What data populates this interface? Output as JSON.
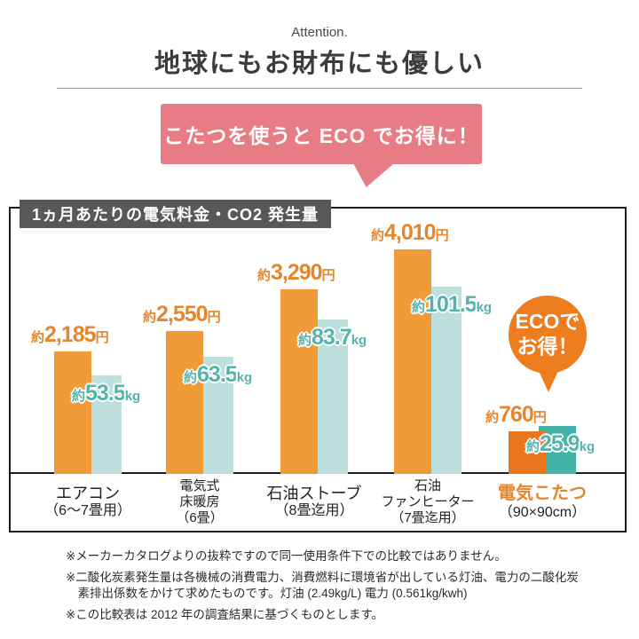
{
  "header": {
    "eyebrow": "Attention.",
    "title": "地球にもお財布にも優しい"
  },
  "bubble": {
    "text": "こたつを使うと ECO でお得に！",
    "bg_color": "#e87c85"
  },
  "chart": {
    "title": "1ヵ月あたりの電気料金・CO2 発生量",
    "titlebar_bg": "#595757"
  },
  "chart_data": {
    "type": "bar",
    "title": "1ヵ月あたりの電気料金・CO2 発生量",
    "categories": [
      "エアコン（6～7畳用）",
      "電気式床暖房（6畳）",
      "石油ストーブ（8畳迄用）",
      "石油ファンヒーター（7畳迄用）",
      "電気こたつ（90×90cm）"
    ],
    "category_lines": [
      {
        "lines": [
          "エアコン",
          "（6～7畳用）"
        ],
        "styles": [
          "main",
          "sub"
        ],
        "highlight": false
      },
      {
        "lines": [
          "電気式",
          "床暖房",
          "（6畳）"
        ],
        "styles": [
          "small",
          "small",
          "small"
        ],
        "highlight": false
      },
      {
        "lines": [
          "石油ストーブ",
          "（8畳迄用）"
        ],
        "styles": [
          "main",
          "sub"
        ],
        "highlight": false
      },
      {
        "lines": [
          "石油",
          "ファンヒーター",
          "（7畳迄用）"
        ],
        "styles": [
          "small",
          "small",
          "small"
        ],
        "highlight": false
      },
      {
        "lines": [
          "電気こたつ",
          "（90×90cm）"
        ],
        "styles": [
          "main",
          "sub"
        ],
        "highlight": true
      }
    ],
    "series": [
      {
        "name": "電気料金",
        "unit": "円",
        "values": [
          2185,
          2550,
          3290,
          4010,
          760
        ],
        "labels": [
          {
            "approx": "約",
            "num": "2,185",
            "unit": "円"
          },
          {
            "approx": "約",
            "num": "2,550",
            "unit": "円"
          },
          {
            "approx": "約",
            "num": "3,290",
            "unit": "円"
          },
          {
            "approx": "約",
            "num": "4,010",
            "unit": "円"
          },
          {
            "approx": "約",
            "num": "760",
            "unit": "円"
          }
        ],
        "color": "#f19a38",
        "highlight_color": "#e9751d"
      },
      {
        "name": "CO2発生量",
        "unit": "kg",
        "values": [
          53.5,
          63.5,
          83.7,
          101.5,
          25.9
        ],
        "labels": [
          {
            "approx": "約",
            "num": "53.5",
            "unit": "kg"
          },
          {
            "approx": "約",
            "num": "63.5",
            "unit": "kg"
          },
          {
            "approx": "約",
            "num": "83.7",
            "unit": "kg"
          },
          {
            "approx": "約",
            "num": "101.5",
            "unit": "kg"
          },
          {
            "approx": "約",
            "num": "25.9",
            "unit": "kg"
          }
        ],
        "color": "#bedfdb",
        "highlight_color": "#45b2aa"
      }
    ],
    "highlight_index": 4,
    "grid": false,
    "legend": false
  },
  "eco_badge": {
    "line1": "ECOで",
    "line2": "お得！",
    "bg_color": "#ed7d1e"
  },
  "footnotes": [
    "※メーカーカタログよりの抜粋ですので同一使用条件下での比較ではありません。",
    "※二酸化炭素発生量は各機械の消費電力、消費燃料に環境省が出している灯油、電力の二酸化炭素排出係数をかけて求めたものです。灯油 (2.49kg/L) 電力 (0.561kg/kwh)",
    "※この比較表は 2012 年の調査結果に基づくものとします。"
  ]
}
